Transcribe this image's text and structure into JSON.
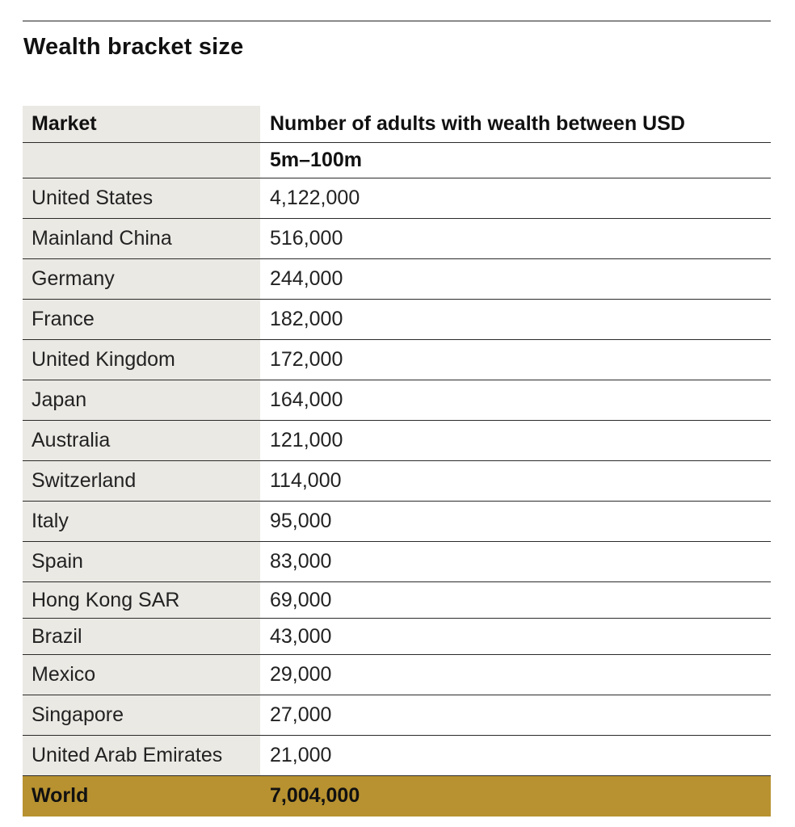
{
  "title": "Wealth bracket size",
  "table": {
    "header": {
      "market": "Market",
      "value_line1": "Number of adults with wealth between USD",
      "value_line2": "5m–100m"
    },
    "rows": [
      {
        "market": "United States",
        "value": "4,122,000"
      },
      {
        "market": "Mainland China",
        "value": "516,000"
      },
      {
        "market": "Germany",
        "value": "244,000"
      },
      {
        "market": "France",
        "value": "182,000"
      },
      {
        "market": "United Kingdom",
        "value": "172,000"
      },
      {
        "market": "Japan",
        "value": "164,000"
      },
      {
        "market": "Australia",
        "value": "121,000"
      },
      {
        "market": "Switzerland",
        "value": "114,000"
      },
      {
        "market": "Italy",
        "value": "95,000"
      },
      {
        "market": "Spain",
        "value": "83,000"
      },
      {
        "market": "Hong Kong SAR",
        "value": "69,000"
      },
      {
        "market": "Brazil",
        "value": "43,000"
      },
      {
        "market": "Mexico",
        "value": "29,000"
      },
      {
        "market": "Singapore",
        "value": "27,000"
      },
      {
        "market": "United Arab Emirates",
        "value": "21,000"
      }
    ],
    "total": {
      "market": "World",
      "value": "7,004,000"
    }
  },
  "colors": {
    "market_column_bg": "#ebe9e4",
    "total_row_bg": "#b89230",
    "rule": "#2a2a2a"
  }
}
